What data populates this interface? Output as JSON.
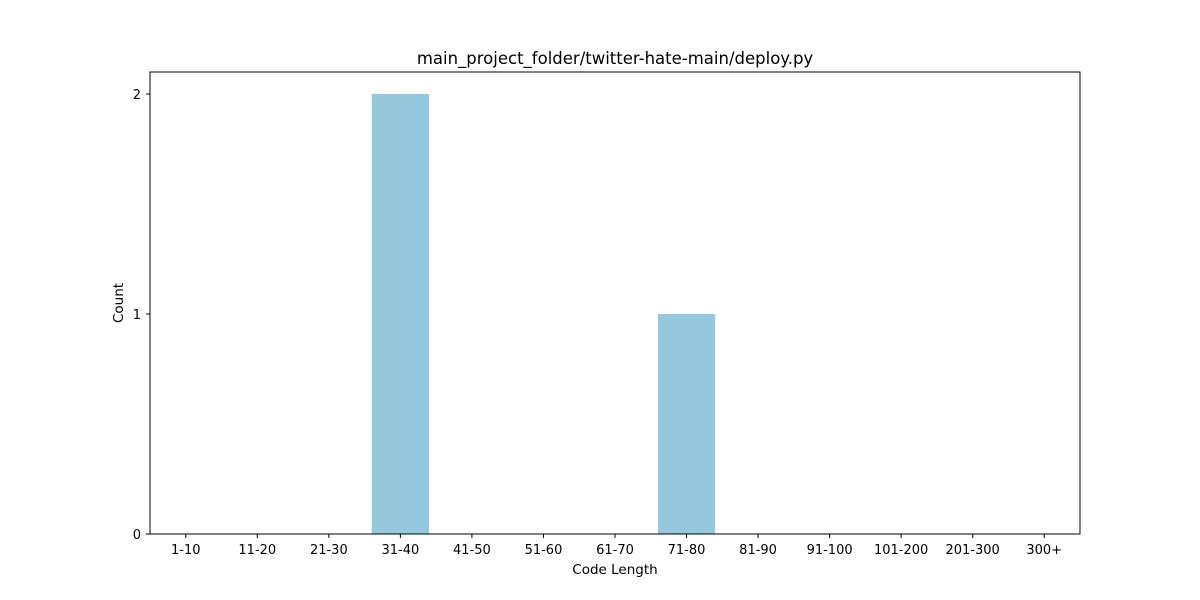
{
  "chart_data": {
    "type": "bar",
    "title": "main_project_folder/twitter-hate-main/deploy.py",
    "xlabel": "Code Length",
    "ylabel": "Count",
    "categories": [
      "1-10",
      "11-20",
      "21-30",
      "31-40",
      "41-50",
      "51-60",
      "61-70",
      "71-80",
      "81-90",
      "91-100",
      "101-200",
      "201-300",
      "300+"
    ],
    "values": [
      0,
      0,
      0,
      2,
      0,
      0,
      0,
      1,
      0,
      0,
      0,
      0,
      0
    ],
    "ylim": [
      0,
      2.1
    ],
    "yticks": [
      0,
      1,
      2
    ],
    "ytick_labels": [
      "0",
      "1",
      "2"
    ],
    "bar_color": "#95c8dd",
    "grid": false,
    "legend": "none"
  }
}
